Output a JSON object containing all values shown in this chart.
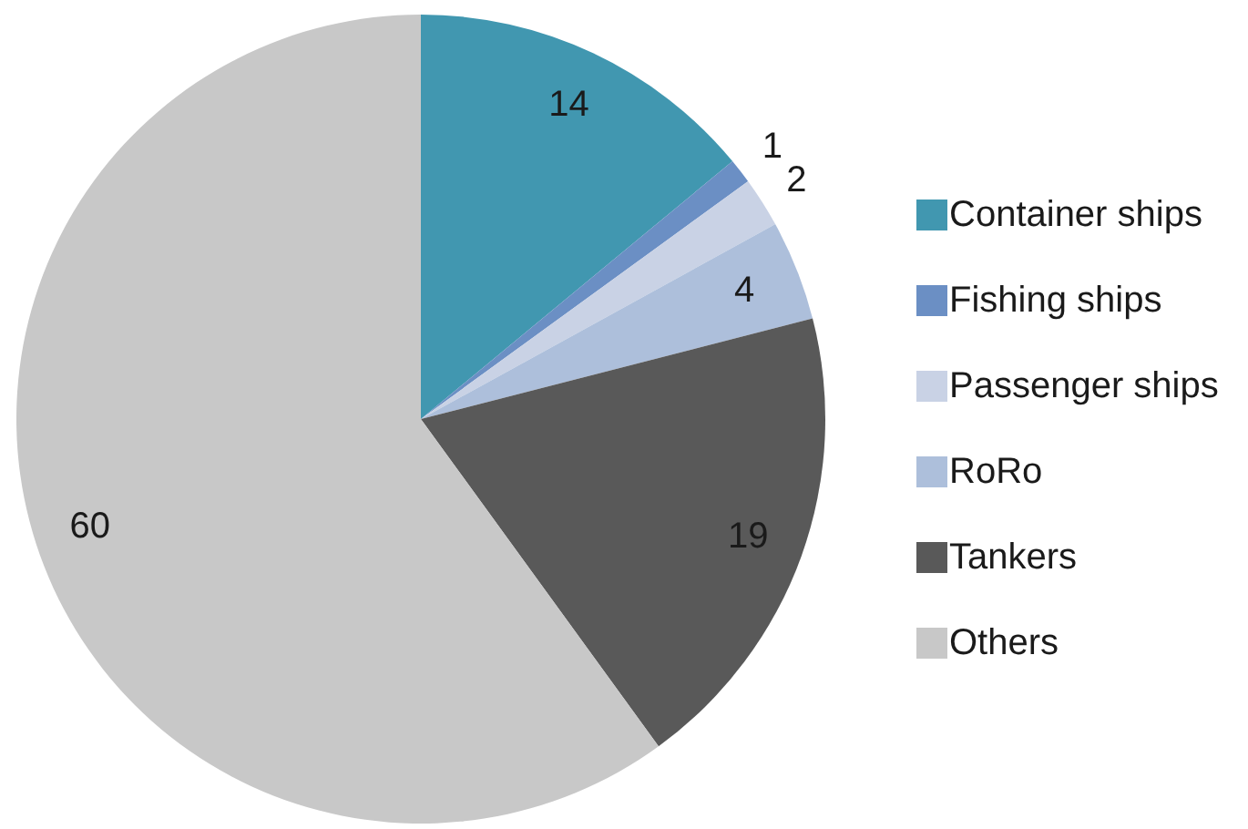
{
  "chart_data": {
    "type": "pie",
    "categories": [
      "Container ships",
      "Fishing ships",
      "Passenger ships",
      "RoRo",
      "Tankers",
      "Others"
    ],
    "values": [
      14,
      1,
      2,
      4,
      19,
      60
    ],
    "colors": [
      "#4197b0",
      "#6b8fc4",
      "#c9d2e5",
      "#adbfdb",
      "#595959",
      "#c8c8c8"
    ],
    "data_labels": true,
    "legend": "right"
  }
}
